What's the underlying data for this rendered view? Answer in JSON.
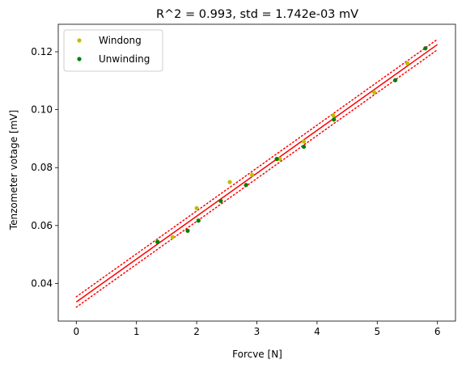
{
  "chart_data": {
    "type": "scatter",
    "title": "R^2 = 0.993, std = 1.742e-03 mV",
    "xlabel": "Forcve [N]",
    "ylabel": "Tenzometer votage [mV]",
    "xlim": [
      -0.3,
      6.3
    ],
    "ylim": [
      0.027,
      0.1295
    ],
    "xticks": [
      0,
      1,
      2,
      3,
      4,
      5,
      6
    ],
    "yticks": [
      0.04,
      0.06,
      0.08,
      0.1,
      0.12
    ],
    "ytick_labels": [
      "0.04",
      "0.06",
      "0.08",
      "0.10",
      "0.12"
    ],
    "grid": false,
    "legend": "top-left",
    "series": [
      {
        "name": "Windong",
        "color": "#bfbf00",
        "marker": "point",
        "x": [
          1.35,
          1.6,
          2.0,
          2.55,
          2.92,
          3.38,
          3.78,
          4.27,
          4.95,
          5.5
        ],
        "y": [
          0.0545,
          0.056,
          0.066,
          0.075,
          0.0775,
          0.083,
          0.089,
          0.098,
          0.106,
          0.116
        ]
      },
      {
        "name": "Unwinding",
        "color": "#008000",
        "marker": "point",
        "x": [
          1.35,
          1.85,
          2.03,
          2.4,
          2.82,
          3.33,
          3.78,
          4.28,
          5.3,
          5.8
        ],
        "y": [
          0.0543,
          0.0582,
          0.0617,
          0.0685,
          0.074,
          0.083,
          0.0872,
          0.0966,
          0.1102,
          0.1212
        ]
      }
    ],
    "fit": {
      "color": "#ff0000",
      "x": [
        0,
        6
      ],
      "y": [
        0.0336,
        0.1225
      ],
      "band": 0.0018
    }
  }
}
